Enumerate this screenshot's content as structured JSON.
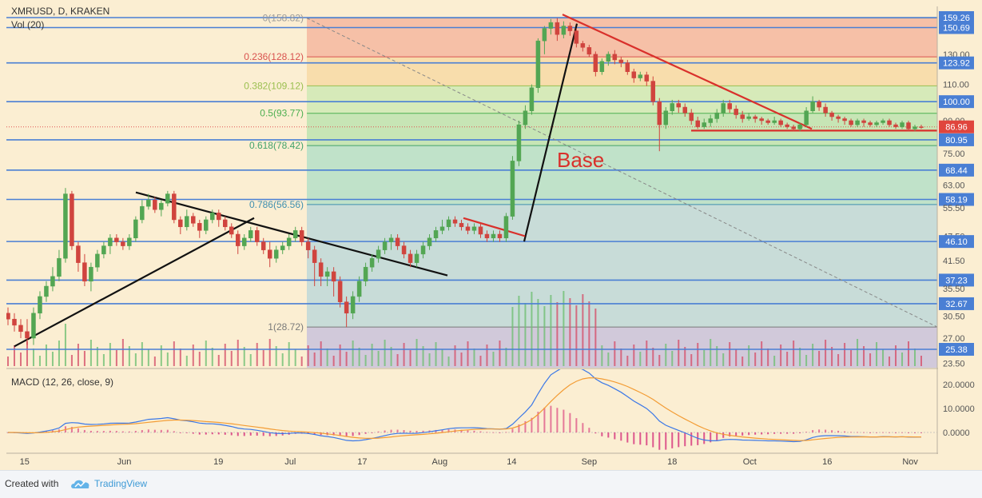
{
  "chart_data": {
    "type": "candlestick",
    "title": "XMRUSD, D, KRAKEN",
    "volume_label": "Vol (20)",
    "price_scale": "log",
    "price_axis_ticks": [
      159.26,
      150.69,
      130.0,
      123.92,
      110.0,
      100.0,
      90.0,
      86.96,
      80.95,
      75.0,
      68.44,
      63.0,
      58.19,
      55.5,
      47.5,
      46.1,
      41.5,
      37.23,
      35.5,
      32.67,
      30.5,
      27.0,
      25.38,
      23.5
    ],
    "x_axis_ticks": [
      "15",
      "Jun",
      "19",
      "Jul",
      "17",
      "Aug",
      "14",
      "Sep",
      "18",
      "Oct",
      "16",
      "Nov"
    ],
    "last_price": 86.96,
    "horizontal_levels": [
      159.26,
      150.69,
      123.92,
      100.0,
      80.95,
      68.44,
      58.19,
      46.1,
      37.23,
      32.67,
      25.38
    ],
    "fibonacci": [
      {
        "label": "0(158.82)",
        "value": 158.82
      },
      {
        "label": "0.236(128.12)",
        "value": 128.12
      },
      {
        "label": "0.382(109.12)",
        "value": 109.12
      },
      {
        "label": "0.5(93.77)",
        "value": 93.77
      },
      {
        "label": "0.618(78.42)",
        "value": 78.42
      },
      {
        "label": "0.786(56.56)",
        "value": 56.56
      },
      {
        "label": "1(28.72)",
        "value": 28.72
      }
    ],
    "annotation": "Base",
    "candles": [
      [
        31,
        30,
        32,
        29
      ],
      [
        30,
        29,
        31,
        28
      ],
      [
        29,
        28,
        30,
        27
      ],
      [
        28,
        27,
        30,
        26
      ],
      [
        27,
        31,
        32,
        26
      ],
      [
        31,
        34,
        35,
        30
      ],
      [
        34,
        36,
        37,
        33
      ],
      [
        36,
        38,
        40,
        35
      ],
      [
        38,
        42,
        44,
        37
      ],
      [
        42,
        60,
        62,
        41
      ],
      [
        60,
        45,
        61,
        44
      ],
      [
        45,
        41,
        46,
        39
      ],
      [
        41,
        37,
        43,
        36
      ],
      [
        37,
        40,
        41,
        35
      ],
      [
        40,
        43,
        44,
        39
      ],
      [
        43,
        45,
        46,
        42
      ],
      [
        45,
        47,
        48,
        43
      ],
      [
        47,
        46,
        48,
        45
      ],
      [
        46,
        45,
        47,
        44
      ],
      [
        45,
        47,
        48,
        44
      ],
      [
        47,
        52,
        53,
        46
      ],
      [
        52,
        56,
        58,
        51
      ],
      [
        56,
        58,
        60,
        55
      ],
      [
        58,
        55,
        59,
        54
      ],
      [
        55,
        57,
        58,
        53
      ],
      [
        57,
        60,
        61,
        56
      ],
      [
        60,
        52,
        61,
        51
      ],
      [
        52,
        50,
        53,
        48
      ],
      [
        50,
        53,
        55,
        49
      ],
      [
        53,
        51,
        54,
        50
      ],
      [
        51,
        49,
        52,
        47
      ],
      [
        49,
        52,
        53,
        48
      ],
      [
        52,
        54,
        55,
        51
      ],
      [
        54,
        52,
        55,
        50
      ],
      [
        52,
        50,
        53,
        49
      ],
      [
        50,
        48,
        51,
        47
      ],
      [
        48,
        45,
        49,
        43
      ],
      [
        45,
        47,
        48,
        44
      ],
      [
        47,
        49,
        50,
        46
      ],
      [
        49,
        46,
        50,
        45
      ],
      [
        46,
        44,
        47,
        43
      ],
      [
        44,
        42,
        46,
        40
      ],
      [
        42,
        44,
        45,
        41
      ],
      [
        44,
        45,
        46,
        43
      ],
      [
        45,
        47,
        48,
        44
      ],
      [
        47,
        49,
        50,
        46
      ],
      [
        49,
        46,
        50,
        45
      ],
      [
        46,
        44,
        47,
        42
      ],
      [
        44,
        41,
        45,
        36
      ],
      [
        41,
        38,
        42,
        36
      ],
      [
        38,
        39,
        40,
        36
      ],
      [
        39,
        37,
        40,
        34
      ],
      [
        37,
        33,
        38,
        32
      ],
      [
        33,
        31,
        34,
        28.7
      ],
      [
        31,
        34,
        35,
        30
      ],
      [
        34,
        37,
        38,
        33
      ],
      [
        37,
        40,
        41,
        36
      ],
      [
        40,
        42,
        43,
        39
      ],
      [
        42,
        44,
        45,
        41
      ],
      [
        44,
        46,
        47,
        43
      ],
      [
        46,
        47,
        48,
        44
      ],
      [
        47,
        45,
        48,
        44
      ],
      [
        45,
        43,
        46,
        42
      ],
      [
        43,
        41,
        44,
        40
      ],
      [
        41,
        43,
        44,
        40
      ],
      [
        43,
        45,
        46,
        42
      ],
      [
        45,
        47,
        48,
        44
      ],
      [
        47,
        49,
        50,
        46
      ],
      [
        49,
        50,
        52,
        48
      ],
      [
        50,
        52,
        53,
        49
      ],
      [
        52,
        51,
        53,
        50
      ],
      [
        51,
        50,
        52,
        49
      ],
      [
        50,
        49,
        51,
        48
      ],
      [
        49,
        50,
        51,
        48
      ],
      [
        50,
        48,
        51,
        47
      ],
      [
        48,
        47,
        49,
        46
      ],
      [
        47,
        48,
        49,
        46
      ],
      [
        48,
        47,
        49,
        46
      ],
      [
        47,
        53,
        54,
        46
      ],
      [
        53,
        72,
        74,
        52
      ],
      [
        72,
        88,
        90,
        70
      ],
      [
        88,
        95,
        98,
        86
      ],
      [
        95,
        108,
        110,
        93
      ],
      [
        108,
        140,
        142,
        105
      ],
      [
        140,
        150,
        152,
        130
      ],
      [
        150,
        155,
        158,
        145
      ],
      [
        155,
        145,
        158.8,
        140
      ],
      [
        145,
        152,
        156,
        142
      ],
      [
        152,
        148,
        155,
        144
      ],
      [
        148,
        138,
        150,
        135
      ],
      [
        138,
        135,
        140,
        132
      ],
      [
        135,
        130,
        137,
        128
      ],
      [
        130,
        118,
        132,
        115
      ],
      [
        118,
        125,
        127,
        116
      ],
      [
        125,
        130,
        132,
        122
      ],
      [
        130,
        126,
        133,
        123
      ],
      [
        126,
        124,
        128,
        121
      ],
      [
        124,
        118,
        126,
        116
      ],
      [
        118,
        114,
        120,
        111
      ],
      [
        114,
        116,
        118,
        112
      ],
      [
        116,
        112,
        118,
        109
      ],
      [
        112,
        100,
        115,
        98
      ],
      [
        100,
        88,
        102,
        76
      ],
      [
        88,
        95,
        97,
        86
      ],
      [
        95,
        99,
        101,
        93
      ],
      [
        99,
        97,
        101,
        94
      ],
      [
        97,
        94,
        99,
        92
      ],
      [
        94,
        90,
        96,
        88
      ],
      [
        90,
        87,
        92,
        86
      ],
      [
        87,
        89,
        91,
        86
      ],
      [
        89,
        91,
        93,
        87
      ],
      [
        91,
        94,
        96,
        89
      ],
      [
        94,
        99,
        101,
        92
      ],
      [
        99,
        96,
        101,
        94
      ],
      [
        96,
        93,
        98,
        91
      ],
      [
        93,
        91,
        95,
        89
      ],
      [
        91,
        92,
        94,
        90
      ],
      [
        92,
        91,
        93,
        89
      ],
      [
        91,
        90,
        92,
        88
      ],
      [
        90,
        89,
        91,
        88
      ],
      [
        89,
        90,
        92,
        88
      ],
      [
        90,
        88,
        91,
        87
      ],
      [
        88,
        87,
        89,
        86
      ],
      [
        87,
        86,
        88,
        85
      ],
      [
        86,
        88,
        89,
        85
      ],
      [
        88,
        95,
        97,
        87
      ],
      [
        95,
        100,
        103,
        94
      ],
      [
        100,
        97,
        101,
        95
      ],
      [
        97,
        94,
        99,
        92
      ],
      [
        94,
        92,
        95,
        90
      ],
      [
        92,
        91,
        93,
        89
      ],
      [
        91,
        90,
        92,
        88
      ],
      [
        90,
        88,
        91,
        87
      ],
      [
        88,
        90,
        91,
        87
      ],
      [
        90,
        89,
        91,
        87
      ],
      [
        89,
        88,
        90,
        87
      ],
      [
        88,
        89,
        90,
        87
      ],
      [
        89,
        90,
        91,
        88
      ],
      [
        90,
        88,
        91,
        87
      ],
      [
        88,
        87,
        89,
        86
      ],
      [
        87,
        89,
        90,
        86
      ],
      [
        89,
        86,
        90,
        85
      ],
      [
        86,
        87,
        88,
        85
      ],
      [
        87,
        86.96,
        88,
        86
      ]
    ],
    "macd_label": "MACD (12, 26, close, 9)",
    "macd_axis_ticks": [
      20.0,
      10.0,
      0.0
    ]
  },
  "footer": {
    "created_with": "Created with",
    "brand": "TradingView"
  }
}
